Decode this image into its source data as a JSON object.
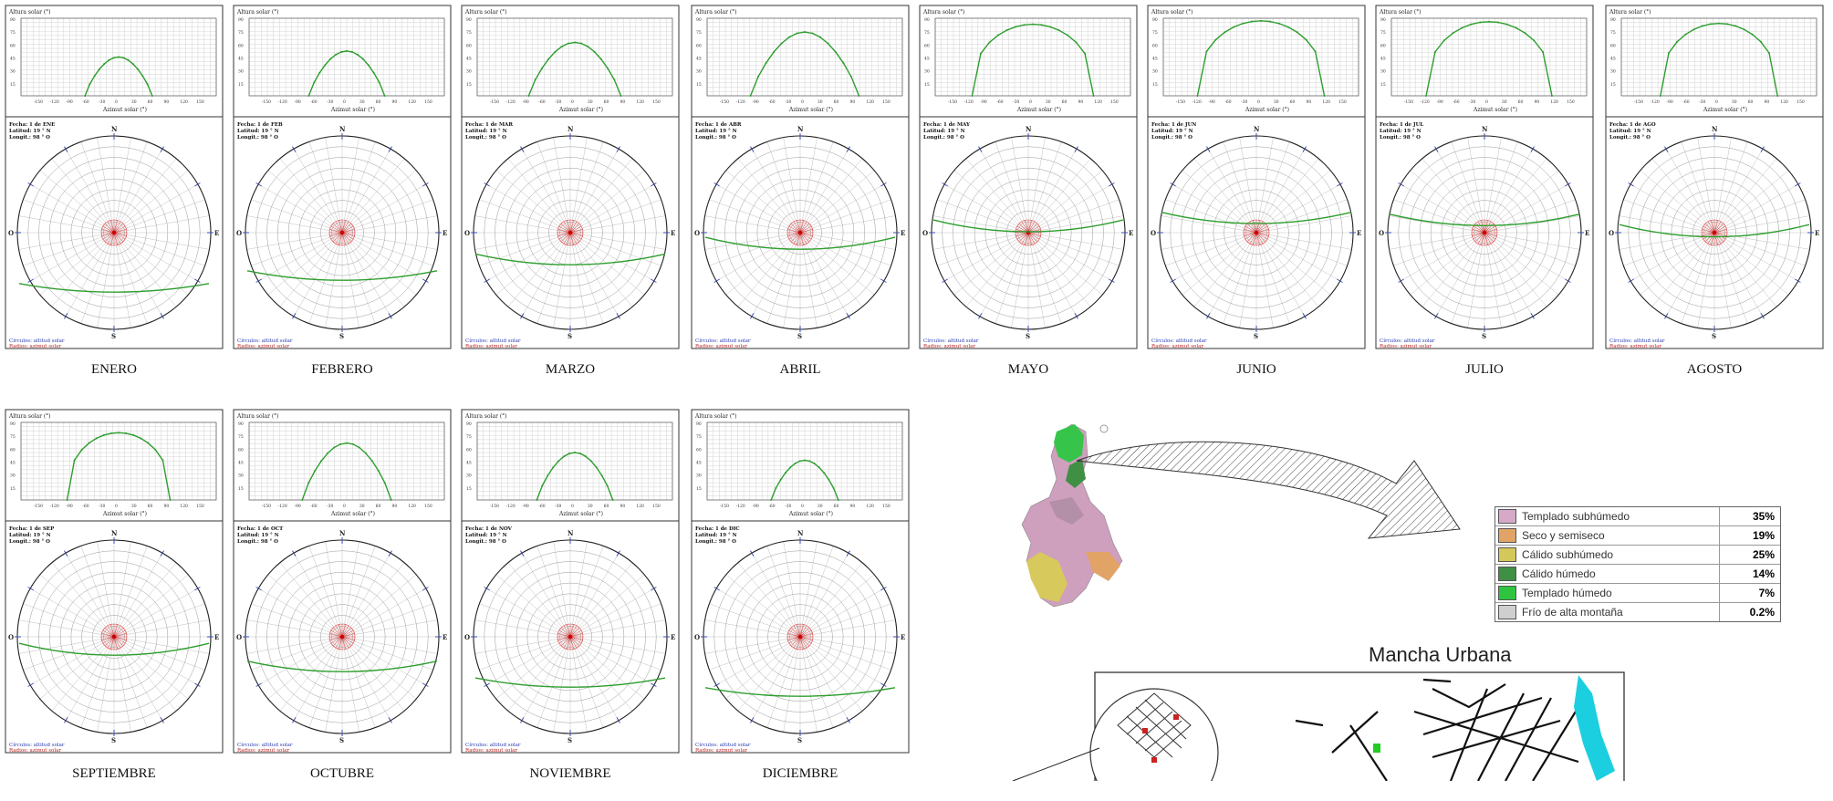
{
  "months": [
    {
      "name": "ENERO",
      "peak": 45,
      "span": 62,
      "tilt": 0.55,
      "alt_label": "Altura solar (°)",
      "az_label": "Azimut solar (°)",
      "info": [
        "Fecha: 1 de ENE",
        "Latitud: 19 ° N",
        "Longit.: 98 ° O"
      ]
    },
    {
      "name": "FEBRERO",
      "peak": 52,
      "span": 70,
      "tilt": 0.42,
      "alt_label": "Altura solar (°)",
      "az_label": "Azimut solar (°)",
      "info": [
        "Fecha: 1 de FEB",
        "Latitud: 19 ° N",
        "Longit.: 98 ° O"
      ]
    },
    {
      "name": "MARZO",
      "peak": 62,
      "span": 85,
      "tilt": 0.25,
      "alt_label": "Altura solar (°)",
      "az_label": "Azimut solar (°)",
      "info": [
        "Fecha: 1 de MAR",
        "Latitud: 19 ° N",
        "Longit.: 98 ° O"
      ]
    },
    {
      "name": "ABRIL",
      "peak": 74,
      "span": 100,
      "tilt": 0.08,
      "alt_label": "Altura solar (°)",
      "az_label": "Azimut solar (°)",
      "info": [
        "Fecha: 1 de ABR",
        "Latitud: 19 ° N",
        "Longit.: 98 ° O"
      ]
    },
    {
      "name": "MAYO",
      "peak": 83,
      "span": 112,
      "tilt": -0.1,
      "alt_label": "Altura solar (°)",
      "az_label": "Azimut solar (°)",
      "info": [
        "Fecha: 1 de MAY",
        "Latitud: 19 ° N",
        "Longit.: 98 ° O"
      ]
    },
    {
      "name": "JUNIO",
      "peak": 87,
      "span": 117,
      "tilt": -0.18,
      "alt_label": "Altura solar (°)",
      "az_label": "Azimut solar (°)",
      "info": [
        "Fecha: 1 de JUN",
        "Latitud: 19 ° N",
        "Longit.: 98 ° O"
      ]
    },
    {
      "name": "JULIO",
      "peak": 86,
      "span": 116,
      "tilt": -0.16,
      "alt_label": "Altura solar (°)",
      "az_label": "Azimut solar (°)",
      "info": [
        "Fecha: 1 de JUL",
        "Latitud: 19 ° N",
        "Longit.: 98 ° O"
      ]
    },
    {
      "name": "AGOSTO",
      "peak": 84,
      "span": 108,
      "tilt": -0.05,
      "alt_label": "Altura solar (°)",
      "az_label": "Azimut solar (°)",
      "info": [
        "Fecha: 1 de AGO",
        "Latitud: 19 ° N",
        "Longit.: 98 ° O"
      ]
    },
    {
      "name": "SEPTIEMBRE",
      "peak": 78,
      "span": 95,
      "tilt": 0.1,
      "alt_label": "Altura solar (°)",
      "az_label": "Azimut solar (°)",
      "info": [
        "Fecha: 1 de SEP",
        "Latitud: 19 ° N",
        "Longit.: 98 ° O"
      ]
    },
    {
      "name": "OCTUBRE",
      "peak": 66,
      "span": 82,
      "tilt": 0.28,
      "alt_label": "Altura solar (°)",
      "az_label": "Azimut solar (°)",
      "info": [
        "Fecha: 1 de OCT",
        "Latitud: 19 ° N",
        "Longit.: 98 ° O"
      ]
    },
    {
      "name": "NOVIEMBRE",
      "peak": 55,
      "span": 70,
      "tilt": 0.45,
      "alt_label": "Altura solar (°)",
      "az_label": "Azimut solar (°)",
      "info": [
        "Fecha: 1 de NOV",
        "Latitud: 19 ° N",
        "Longit.: 98 ° O"
      ]
    },
    {
      "name": "DICIEMBRE",
      "peak": 46,
      "span": 62,
      "tilt": 0.55,
      "alt_label": "Altura solar (°)",
      "az_label": "Azimut solar (°)",
      "info": [
        "Fecha: 1 de DIC",
        "Latitud: 19 ° N",
        "Longit.: 98 ° O"
      ]
    }
  ],
  "polar": {
    "north": "N",
    "south": "S",
    "east": "E",
    "west": "O",
    "legend_circles": "Círculos: altitud solar",
    "legend_radios": "Radios: azimut solar"
  },
  "climate_legend": [
    {
      "name": "Templado subhúmedo",
      "pct": "35%",
      "color": "#d6a9c8"
    },
    {
      "name": "Seco y semiseco",
      "pct": "19%",
      "color": "#e2a366"
    },
    {
      "name": "Cálido subhúmedo",
      "pct": "25%",
      "color": "#d5c85a"
    },
    {
      "name": "Cálido húmedo",
      "pct": "14%",
      "color": "#3f8f45"
    },
    {
      "name": "Templado húmedo",
      "pct": "7%",
      "color": "#2ec43f"
    },
    {
      "name": "Frío de alta montaña",
      "pct": "0.2%",
      "color": "#cfcfcf"
    }
  ],
  "urban_title": "Mancha Urbana"
}
